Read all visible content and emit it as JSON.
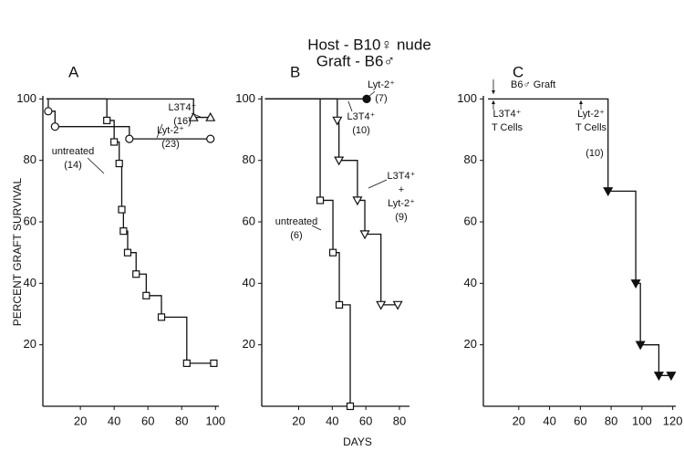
{
  "title": [
    "Host - B10♀ nude",
    "Graft - B6♂"
  ],
  "y_label": "PERCENT GRAFT SURVIVAL",
  "x_label": "DAYS",
  "chart_data": [
    {
      "type": "step",
      "title": "A",
      "xlim": [
        -2.2,
        102
      ],
      "ylim": [
        0,
        101
      ],
      "xticks": [
        20,
        40,
        60,
        80,
        100
      ],
      "yticks": [
        20,
        40,
        60,
        80,
        100
      ],
      "series": [
        {
          "label": [
            "L3T4⁺",
            "(16)"
          ],
          "marker": "triangle",
          "color": "#111",
          "x": [
            0,
            87,
            97
          ],
          "values": [
            100,
            94,
            94
          ]
        },
        {
          "label": [
            "Lyt-2⁺",
            "(23)"
          ],
          "marker": "circle",
          "color": "#111",
          "x": [
            0,
            1,
            5,
            49,
            97
          ],
          "values": [
            100,
            96,
            91,
            87,
            87
          ]
        },
        {
          "label": [
            "untreated",
            "(14)"
          ],
          "marker": "square",
          "color": "#111",
          "x": [
            0,
            35.7,
            40,
            43,
            44.5,
            45.5,
            48,
            53,
            59,
            68,
            83,
            99
          ],
          "values": [
            100,
            93,
            86,
            79,
            64,
            57,
            50,
            43,
            36,
            29,
            14,
            14
          ]
        }
      ]
    },
    {
      "type": "step",
      "title": "B",
      "xlim": [
        -2,
        86
      ],
      "ylim": [
        0,
        101
      ],
      "xticks": [
        20,
        40,
        60,
        80
      ],
      "yticks": [
        20,
        40,
        60,
        80,
        100
      ],
      "series": [
        {
          "label": [
            "Lyt-2⁺",
            "(7)"
          ],
          "marker": "circle",
          "color": "#111",
          "x": [
            0,
            60.5
          ],
          "values": [
            100,
            100
          ]
        },
        {
          "label": [
            "L3T4⁺",
            "(10)"
          ],
          "marker": "circle-filled",
          "color": "#111",
          "x": [
            0,
            60.5
          ],
          "values": [
            100,
            100
          ]
        },
        {
          "label": [
            "L3T4⁺",
            "+",
            "Lyt-2⁺",
            "(9)"
          ],
          "marker": "triangle-down",
          "color": "#111",
          "x": [
            0,
            43,
            44,
            55,
            59.4,
            69,
            79
          ],
          "values": [
            100,
            93,
            80,
            67,
            56,
            33,
            33
          ]
        },
        {
          "label": [
            "untreated",
            "(6)"
          ],
          "marker": "square",
          "color": "#111",
          "x": [
            0,
            32.8,
            40.4,
            44.2,
            50.7
          ],
          "values": [
            100,
            67,
            50,
            33,
            0
          ]
        }
      ]
    },
    {
      "type": "step",
      "title": "C",
      "xlim": [
        -3,
        122
      ],
      "ylim": [
        0,
        101
      ],
      "xticks": [
        20,
        40,
        60,
        80,
        100,
        120
      ],
      "yticks": [
        20,
        40,
        60,
        80,
        100
      ],
      "series": [
        {
          "label": [
            "(10)"
          ],
          "marker": "triangle-down-filled",
          "color": "#111",
          "x": [
            0,
            78,
            96,
            99,
            111,
            119
          ],
          "values": [
            100,
            70,
            40,
            20,
            10,
            10
          ]
        }
      ],
      "annotations": [
        {
          "lines": [
            "B6♂ Graft"
          ]
        },
        {
          "lines": [
            "L3T4⁺",
            "T Cells"
          ]
        },
        {
          "lines": [
            "Lyt-2⁺",
            "T Cells"
          ]
        }
      ]
    }
  ]
}
